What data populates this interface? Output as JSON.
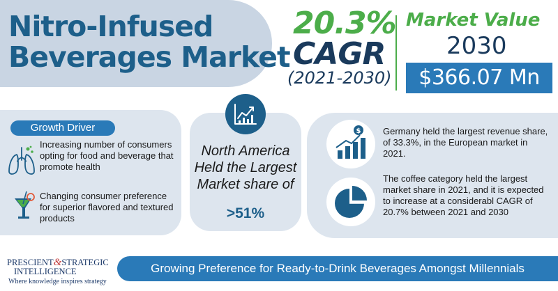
{
  "title": {
    "line1": "Nitro-Infused",
    "line2": "Beverages Market"
  },
  "cagr": {
    "value": "20.3%",
    "label": "CAGR",
    "period": "(2021-2030)"
  },
  "market_value": {
    "label": "Market Value",
    "year": "2030",
    "value": "$366.07 Mn"
  },
  "growth_driver": {
    "badge": "Growth Driver",
    "items": [
      {
        "text": "Increasing number of consumers opting for food and beverage that promote health",
        "icon": "lungs-icon"
      },
      {
        "text": "Changing consumer preference for superior flavored and textured products",
        "icon": "drink-icon"
      }
    ]
  },
  "region": {
    "icon": "growth-chart-icon",
    "text": "North America Held the Largest Market share of",
    "share": ">51%"
  },
  "insights": [
    {
      "text": "Germany held the largest revenue share, of 33.3%, in the European market in 2021.",
      "icon": "bar-chart-dollar-icon"
    },
    {
      "text": "The coffee category held the largest market share in 2021, and it is expected to increase at a considerabl CAGR of 20.7% between 2021 and 2030",
      "icon": "pie-chart-icon"
    }
  ],
  "footer": {
    "logo_line1": "PRESCIENT",
    "logo_amp": "&",
    "logo_line1b": "STRATEGIC",
    "logo_line2": "INTELLIGENCE",
    "logo_tagline": "Where knowledge inspires strategy",
    "banner": "Growing Preference for Ready-to-Drink Beverages Amongst Millennials"
  },
  "colors": {
    "title_blue": "#1d5f8a",
    "accent_green": "#4cad4a",
    "accent_blue": "#2a7ab8",
    "panel_bg": "#dde5ee",
    "title_bg": "#c9d5e3"
  }
}
